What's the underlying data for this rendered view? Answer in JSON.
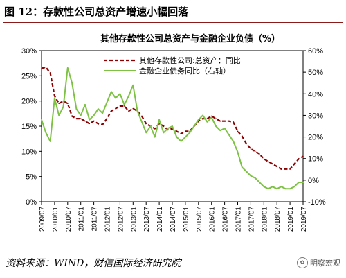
{
  "figure": {
    "title": "图 12：存款性公司总资产增速小幅回落",
    "source": "资料来源：WIND，财信国际经济研究院",
    "watermark": "明察宏观",
    "watermark_icon": "wechat-logo-icon"
  },
  "chart_data": {
    "type": "line",
    "title": "其他存款性公司总资产与金融企业负债（%）",
    "x_labels": [
      "2009/07",
      "2010/01",
      "2010/07",
      "2011/01",
      "2011/07",
      "2012/01",
      "2012/07",
      "2013/01",
      "2013/07",
      "2014/01",
      "2014/07",
      "2015/01",
      "2015/07",
      "2016/01",
      "2016/07",
      "2017/01",
      "2017/07",
      "2018/01",
      "2018/07",
      "2019/01",
      "2019/07"
    ],
    "y_left": {
      "min": 0,
      "max": 30,
      "ticks": [
        0,
        5,
        10,
        15,
        20,
        25,
        30
      ],
      "tick_labels": [
        "0%",
        "5%",
        "10%",
        "15%",
        "20%",
        "25%",
        "30%"
      ]
    },
    "y_right": {
      "min": -10,
      "max": 60,
      "ticks": [
        -10,
        0,
        10,
        20,
        30,
        40,
        50,
        60
      ],
      "tick_labels": [
        "-10%",
        "0%",
        "10%",
        "20%",
        "30%",
        "40%",
        "50%",
        "60%"
      ]
    },
    "legend_position": "top-left inside",
    "series": [
      {
        "name": "其他存款性公司:总资产：同比",
        "axis": "left",
        "color": "#8b0000",
        "style": "dashed",
        "x": [
          "2009/07",
          "2009/09",
          "2009/11",
          "2010/01",
          "2010/03",
          "2010/05",
          "2010/07",
          "2010/09",
          "2010/11",
          "2011/01",
          "2011/03",
          "2011/05",
          "2011/07",
          "2011/09",
          "2011/11",
          "2012/01",
          "2012/03",
          "2012/05",
          "2012/07",
          "2012/09",
          "2012/11",
          "2013/01",
          "2013/03",
          "2013/05",
          "2013/07",
          "2013/09",
          "2013/11",
          "2014/01",
          "2014/03",
          "2014/05",
          "2014/07",
          "2014/09",
          "2014/11",
          "2015/01",
          "2015/03",
          "2015/05",
          "2015/07",
          "2015/09",
          "2015/11",
          "2016/01",
          "2016/03",
          "2016/05",
          "2016/07",
          "2016/09",
          "2016/11",
          "2017/01",
          "2017/03",
          "2017/05",
          "2017/07",
          "2017/09",
          "2017/11",
          "2018/01",
          "2018/03",
          "2018/05",
          "2018/07",
          "2018/09",
          "2018/11",
          "2019/01",
          "2019/03",
          "2019/05",
          "2019/07"
        ],
        "values": [
          26.5,
          26.7,
          25.6,
          21,
          19.5,
          20,
          19.5,
          17,
          16.5,
          16.5,
          16,
          15.5,
          16,
          15.5,
          15.3,
          16.5,
          18,
          18.5,
          19,
          19,
          18,
          18.5,
          18,
          17,
          15.5,
          15,
          14.5,
          15.5,
          15,
          14.3,
          14.5,
          14,
          13.5,
          14,
          14,
          15,
          16,
          16.5,
          16.5,
          17,
          16.5,
          16,
          16,
          16,
          15.8,
          14,
          13,
          11.5,
          10.5,
          10,
          9.5,
          8.5,
          8,
          7.5,
          7,
          6.5,
          6.5,
          6.5,
          7.5,
          8.5,
          9
        ]
      },
      {
        "name": "金融企业债务同比（右轴）",
        "axis": "right",
        "color": "#7dc243",
        "style": "solid",
        "x": [
          "2009/07",
          "2009/09",
          "2009/11",
          "2010/01",
          "2010/03",
          "2010/05",
          "2010/07",
          "2010/09",
          "2010/11",
          "2011/01",
          "2011/03",
          "2011/05",
          "2011/07",
          "2011/09",
          "2011/11",
          "2012/01",
          "2012/03",
          "2012/05",
          "2012/07",
          "2012/09",
          "2012/11",
          "2013/01",
          "2013/03",
          "2013/05",
          "2013/07",
          "2013/09",
          "2013/11",
          "2014/01",
          "2014/03",
          "2014/05",
          "2014/07",
          "2014/09",
          "2014/11",
          "2015/01",
          "2015/03",
          "2015/05",
          "2015/07",
          "2015/09",
          "2015/11",
          "2016/01",
          "2016/03",
          "2016/05",
          "2016/07",
          "2016/09",
          "2016/11",
          "2017/01",
          "2017/03",
          "2017/05",
          "2017/07",
          "2017/09",
          "2017/11",
          "2018/01",
          "2018/03",
          "2018/05",
          "2018/07",
          "2018/09",
          "2018/11",
          "2019/01",
          "2019/03",
          "2019/05",
          "2019/07"
        ],
        "values": [
          28,
          22,
          18,
          38,
          30,
          34,
          52,
          45,
          33,
          30,
          35,
          28,
          30,
          33,
          31,
          36,
          41,
          38,
          40,
          35,
          39,
          44,
          32,
          27,
          22,
          25,
          20,
          28,
          22,
          24,
          25,
          20,
          18,
          20,
          22,
          25,
          28,
          30,
          27,
          29,
          25,
          23,
          24,
          21,
          18,
          13,
          6,
          4,
          2,
          1,
          -1,
          -3,
          -4,
          -3,
          -4,
          -3,
          -4,
          -4,
          -3,
          -1,
          -1
        ]
      }
    ]
  }
}
